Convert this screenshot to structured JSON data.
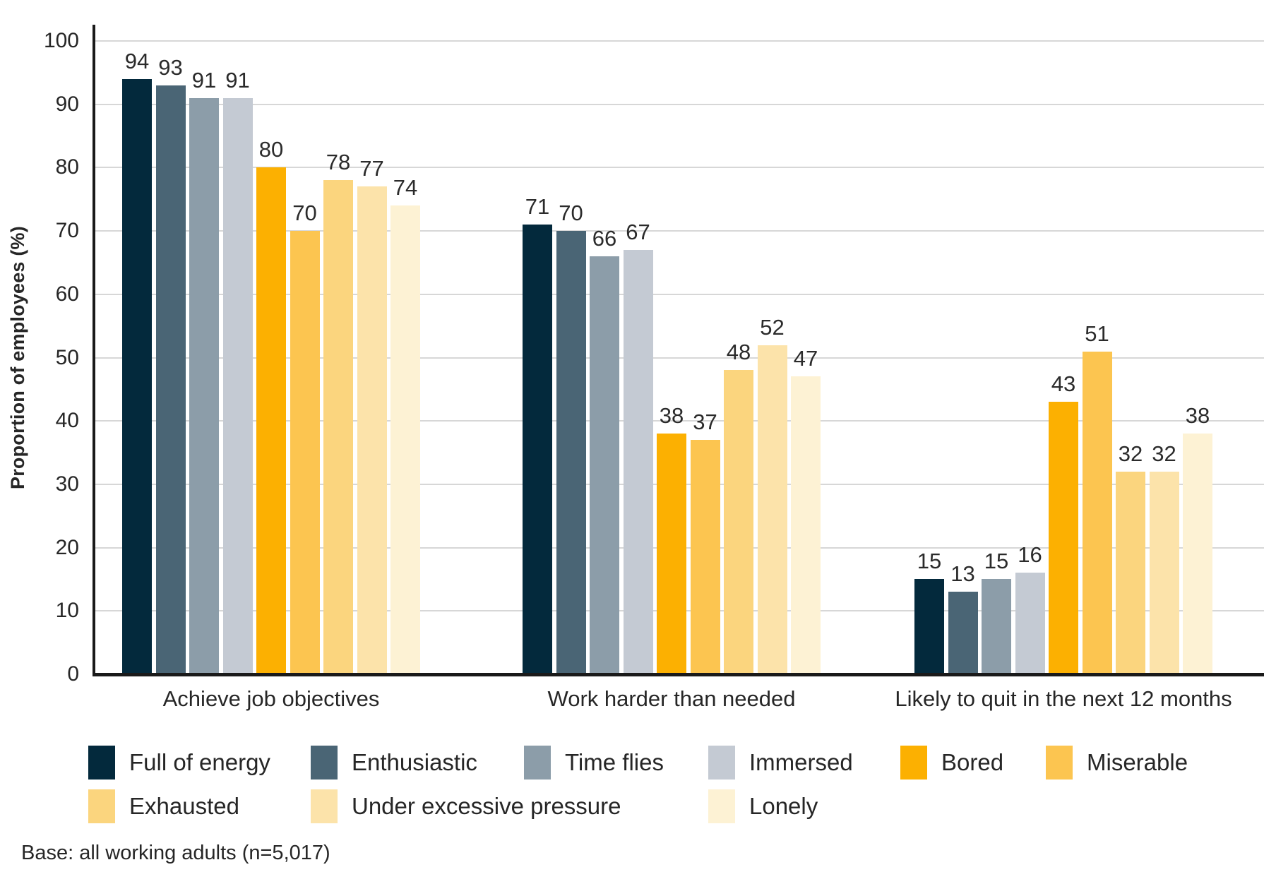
{
  "chart_data": {
    "type": "bar",
    "title": "",
    "xlabel": "",
    "ylabel": "Proportion of employees (%)",
    "ylim": [
      0,
      100
    ],
    "yticks": [
      0,
      10,
      20,
      30,
      40,
      50,
      60,
      70,
      80,
      90,
      100
    ],
    "grid": true,
    "legend_position": "bottom",
    "categories": [
      "Achieve job objectives",
      "Work harder than needed",
      "Likely to quit in the next 12 months"
    ],
    "series": [
      {
        "name": "Full of energy",
        "color": "#03293C",
        "values": [
          94,
          71,
          15
        ]
      },
      {
        "name": "Enthusiastic",
        "color": "#4A6575",
        "values": [
          93,
          70,
          13
        ]
      },
      {
        "name": "Time flies",
        "color": "#8C9DA9",
        "values": [
          91,
          66,
          15
        ]
      },
      {
        "name": "Immersed",
        "color": "#C4CAD3",
        "values": [
          91,
          67,
          16
        ]
      },
      {
        "name": "Bored",
        "color": "#FCB001",
        "values": [
          80,
          38,
          43
        ]
      },
      {
        "name": "Miserable",
        "color": "#FCC550",
        "values": [
          70,
          37,
          51
        ]
      },
      {
        "name": "Exhausted",
        "color": "#FBD57E",
        "values": [
          78,
          48,
          32
        ]
      },
      {
        "name": "Under excessive pressure",
        "color": "#FCE3AA",
        "values": [
          77,
          52,
          32
        ]
      },
      {
        "name": "Lonely",
        "color": "#FDF2D4",
        "values": [
          74,
          47,
          38
        ]
      }
    ],
    "footnote": "Base: all working adults (n=5,017)"
  },
  "colors": {
    "axis": "#1a1a1a",
    "gridline": "#d7d7d7",
    "text": "#262626"
  }
}
